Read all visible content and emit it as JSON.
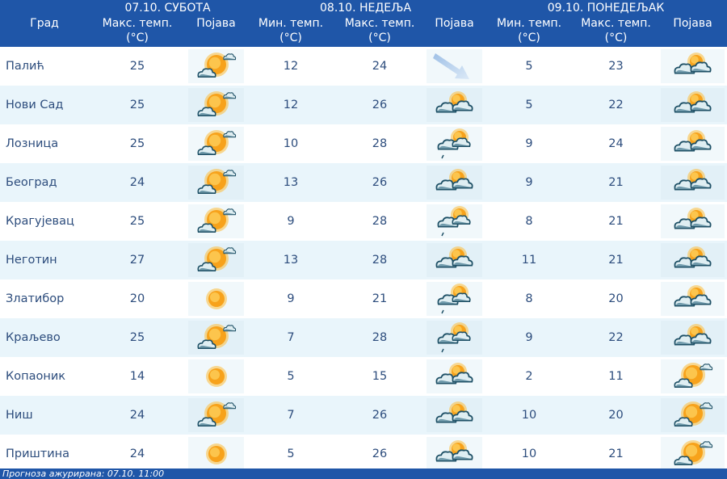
{
  "header": {
    "city_label": "Град",
    "days": [
      {
        "title": "07.10. СУБОТА",
        "cols": [
          {
            "label": "Макс. темп.",
            "unit": "(°C)"
          },
          {
            "label": "Појава",
            "unit": ""
          }
        ]
      },
      {
        "title": "08.10. НЕДЕЉА",
        "cols": [
          {
            "label": "Мин. темп.",
            "unit": "(°C)"
          },
          {
            "label": "Макс. темп.",
            "unit": "(°C)"
          },
          {
            "label": "Појава",
            "unit": ""
          }
        ]
      },
      {
        "title": "09.10. ПОНЕДЕЉАК",
        "cols": [
          {
            "label": "Мин. темп.",
            "unit": "(°C)"
          },
          {
            "label": "Макс. темп.",
            "unit": "(°C)"
          },
          {
            "label": "Појава",
            "unit": ""
          }
        ]
      }
    ]
  },
  "rows": [
    {
      "city": "Палић",
      "d1max": "25",
      "d1icon": "sun-cloud",
      "d2min": "12",
      "d2max": "24",
      "d2icon": "arrow",
      "d3min": "5",
      "d3max": "23",
      "d3icon": "cloud-sun"
    },
    {
      "city": "Нови Сад",
      "d1max": "25",
      "d1icon": "sun-cloud",
      "d2min": "12",
      "d2max": "26",
      "d2icon": "cloud-sun",
      "d3min": "5",
      "d3max": "22",
      "d3icon": "cloud-sun"
    },
    {
      "city": "Лозница",
      "d1max": "25",
      "d1icon": "sun-cloud",
      "d2min": "10",
      "d2max": "28",
      "d2icon": "cloud-sun-rain",
      "d3min": "9",
      "d3max": "24",
      "d3icon": "cloud-sun"
    },
    {
      "city": "Београд",
      "d1max": "24",
      "d1icon": "sun-cloud",
      "d2min": "13",
      "d2max": "26",
      "d2icon": "cloud-sun",
      "d3min": "9",
      "d3max": "21",
      "d3icon": "cloud-sun"
    },
    {
      "city": "Крагујевац",
      "d1max": "25",
      "d1icon": "sun-cloud",
      "d2min": "9",
      "d2max": "28",
      "d2icon": "cloud-sun-rain",
      "d3min": "8",
      "d3max": "21",
      "d3icon": "cloud-sun"
    },
    {
      "city": "Неготин",
      "d1max": "27",
      "d1icon": "sun-cloud",
      "d2min": "13",
      "d2max": "28",
      "d2icon": "cloud-sun",
      "d3min": "11",
      "d3max": "21",
      "d3icon": "cloud-sun"
    },
    {
      "city": "Златибор",
      "d1max": "20",
      "d1icon": "sun",
      "d2min": "9",
      "d2max": "21",
      "d2icon": "cloud-sun-rain",
      "d3min": "8",
      "d3max": "20",
      "d3icon": "cloud-sun"
    },
    {
      "city": "Краљево",
      "d1max": "25",
      "d1icon": "sun-cloud",
      "d2min": "7",
      "d2max": "28",
      "d2icon": "cloud-sun-rain",
      "d3min": "9",
      "d3max": "22",
      "d3icon": "cloud-sun"
    },
    {
      "city": "Копаоник",
      "d1max": "14",
      "d1icon": "sun",
      "d2min": "5",
      "d2max": "15",
      "d2icon": "cloud-sun",
      "d3min": "2",
      "d3max": "11",
      "d3icon": "sun-cloud"
    },
    {
      "city": "Ниш",
      "d1max": "24",
      "d1icon": "sun-cloud",
      "d2min": "7",
      "d2max": "26",
      "d2icon": "cloud-sun",
      "d3min": "10",
      "d3max": "20",
      "d3icon": "sun-cloud"
    },
    {
      "city": "Приштина",
      "d1max": "24",
      "d1icon": "sun",
      "d2min": "5",
      "d2max": "26",
      "d2icon": "cloud-sun",
      "d3min": "10",
      "d3max": "21",
      "d3icon": "sun-cloud"
    }
  ],
  "footer": {
    "text": "Прогноза ажурирана:  07.10. 11:00"
  },
  "colors": {
    "header_bg": "#1f56a8",
    "row_alt": "#e9f5fb",
    "sun": "#f7a21b",
    "cloud": "#5f8fa3"
  }
}
